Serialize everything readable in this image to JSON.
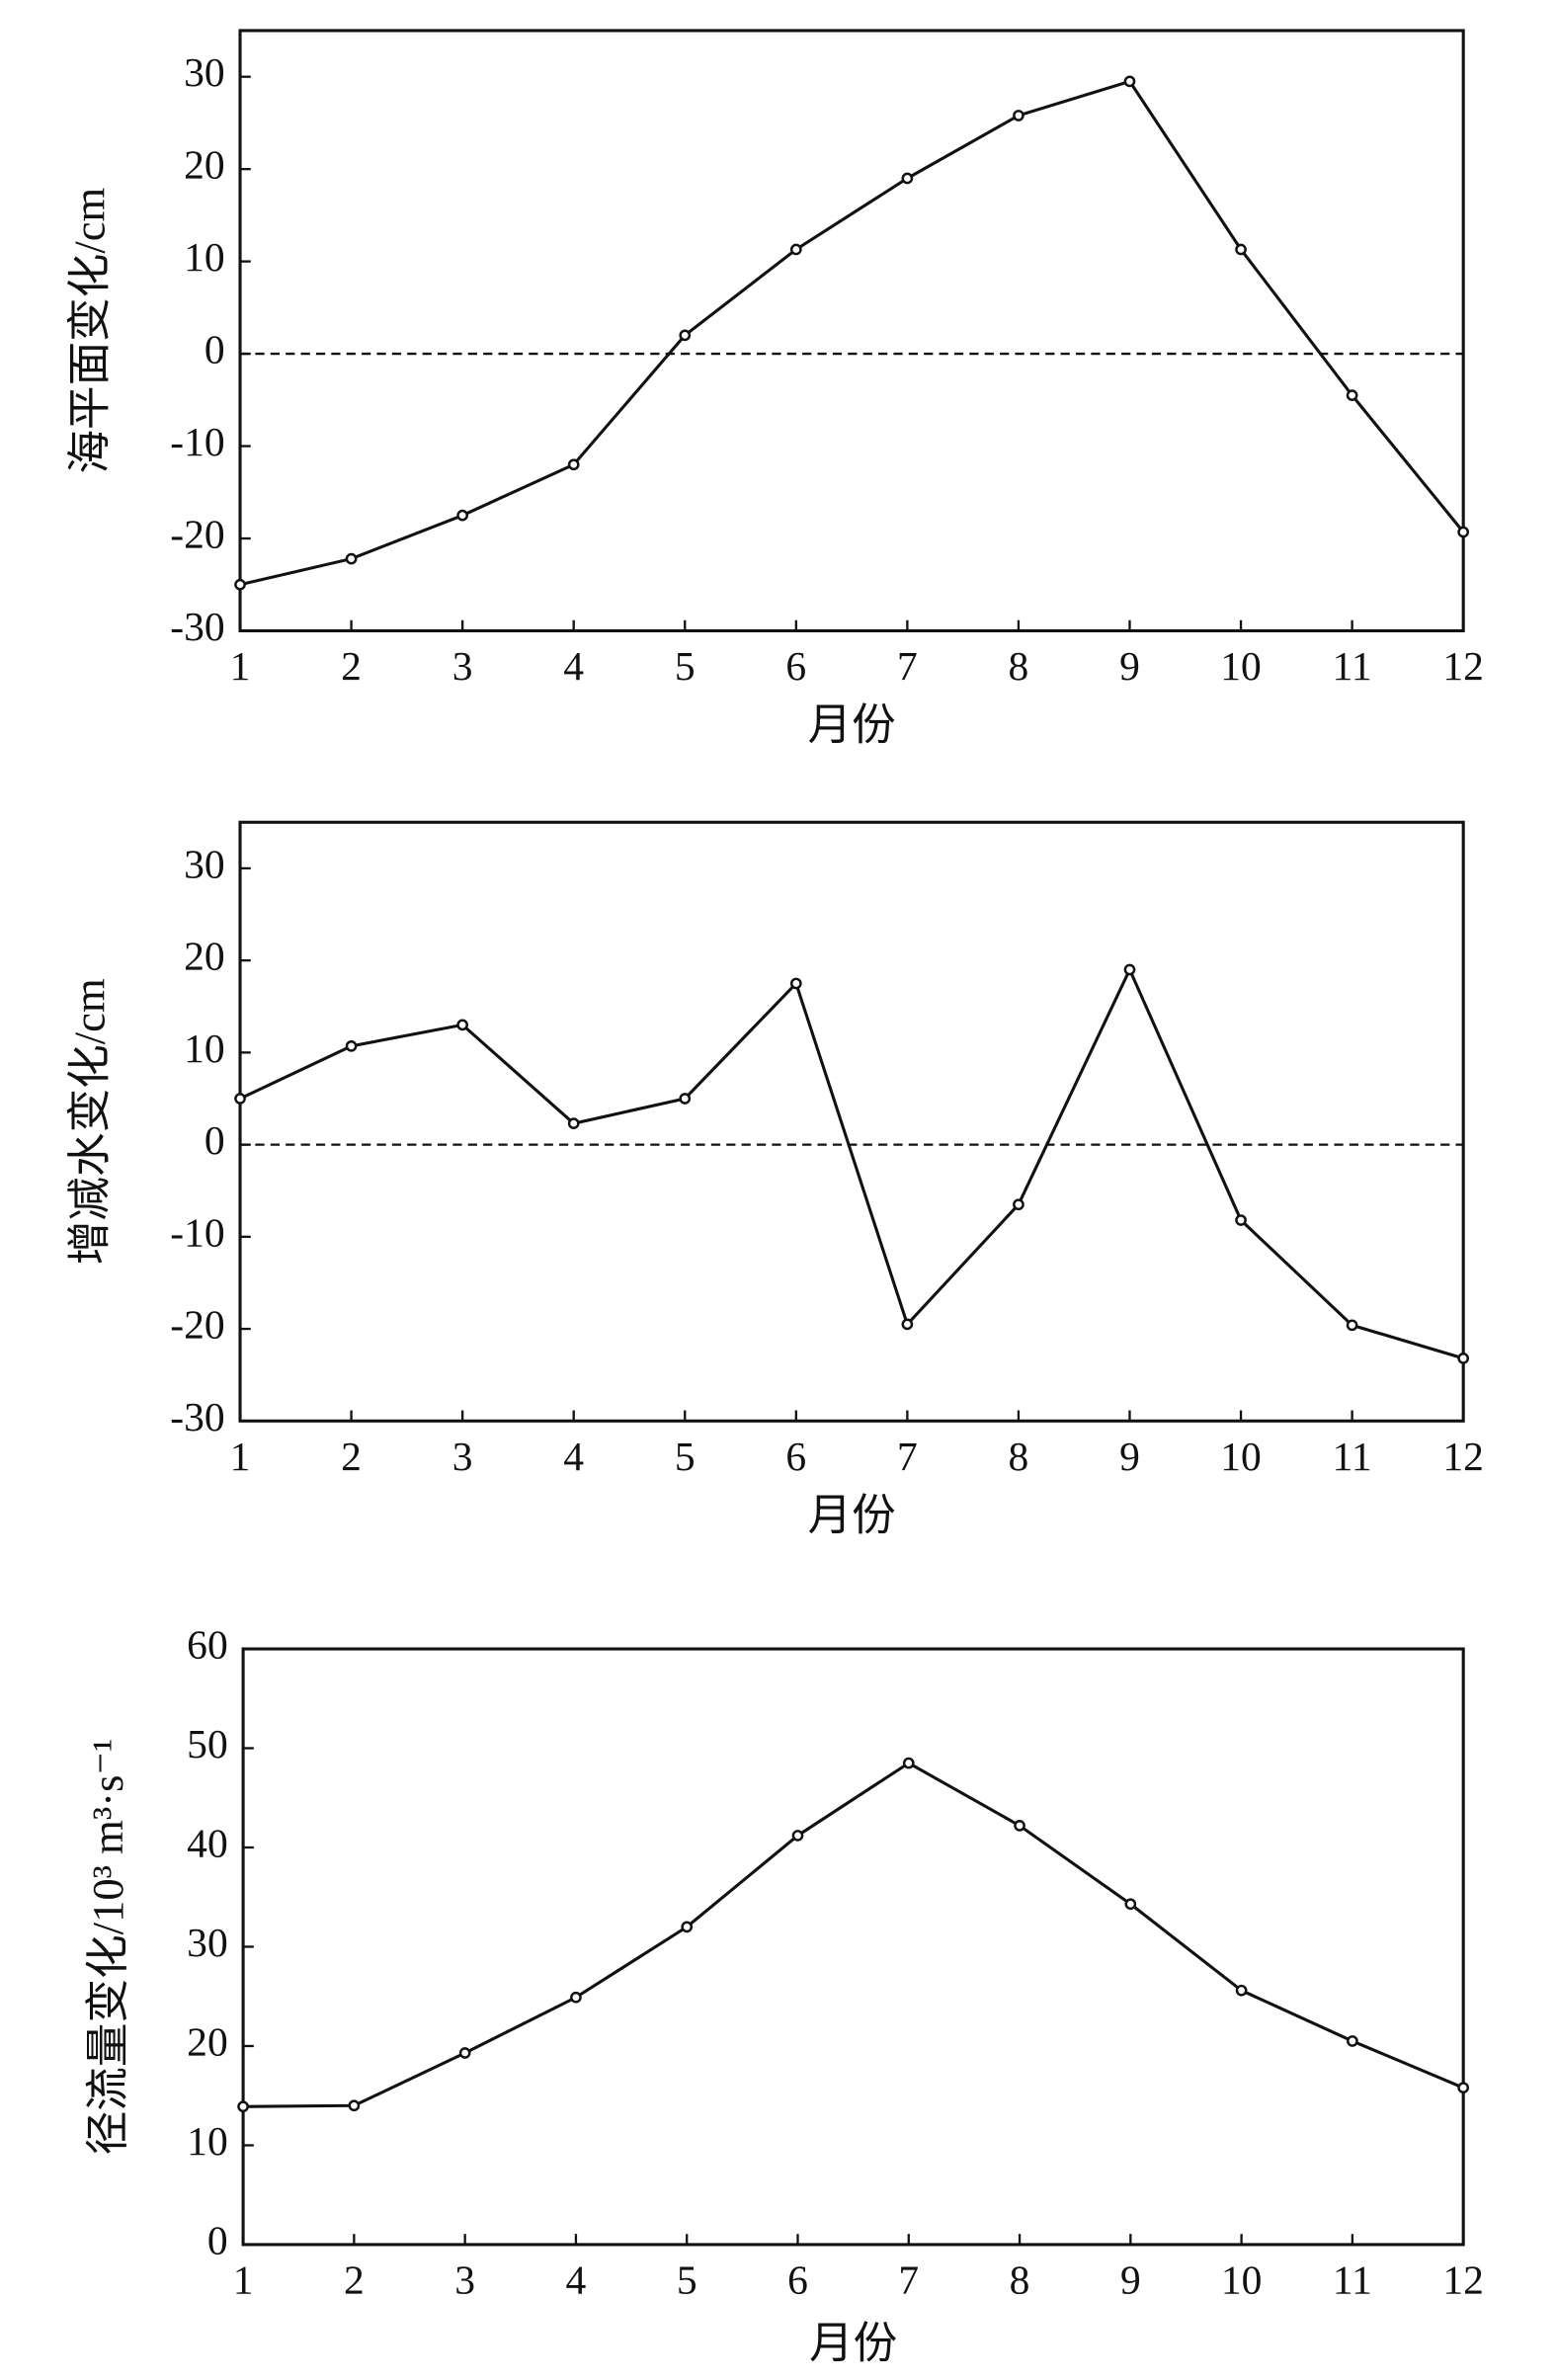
{
  "chart_data": [
    {
      "type": "line",
      "ylabel": "海平面变化/cm",
      "xlabel": "月份",
      "x": [
        1,
        2,
        3,
        4,
        5,
        6,
        7,
        8,
        9,
        10,
        11,
        12
      ],
      "values": [
        -25,
        -22.2,
        -17.5,
        -12,
        2,
        11.3,
        19,
        25.8,
        29.5,
        11.3,
        -4.5,
        -19.3
      ],
      "color": "#111111",
      "xlim": [
        1,
        12
      ],
      "xticks": [
        1,
        2,
        3,
        4,
        5,
        6,
        7,
        8,
        9,
        10,
        11,
        12
      ],
      "ylim": [
        -30,
        35
      ],
      "yticks": [
        -30,
        -20,
        -10,
        0,
        10,
        20,
        30
      ],
      "hline": 0
    },
    {
      "type": "line",
      "ylabel": "增减水变化/cm",
      "xlabel": "月份",
      "x": [
        1,
        2,
        3,
        4,
        5,
        6,
        7,
        8,
        9,
        10,
        11,
        12
      ],
      "values": [
        5,
        10.7,
        13,
        2.3,
        5,
        17.5,
        -19.5,
        -6.5,
        19,
        -8.2,
        -19.6,
        -23.2
      ],
      "color": "#111111",
      "xlim": [
        1,
        12
      ],
      "xticks": [
        1,
        2,
        3,
        4,
        5,
        6,
        7,
        8,
        9,
        10,
        11,
        12
      ],
      "ylim": [
        -30,
        35
      ],
      "yticks": [
        -30,
        -20,
        -10,
        0,
        10,
        20,
        30
      ],
      "hline": 0
    },
    {
      "type": "line",
      "ylabel": "径流量变化/10³ m³·s⁻¹",
      "xlabel": "月份",
      "x": [
        1,
        2,
        3,
        4,
        5,
        6,
        7,
        8,
        9,
        10,
        11,
        12
      ],
      "values": [
        13.9,
        14,
        19.3,
        24.9,
        32,
        41.2,
        48.5,
        42.2,
        34.3,
        25.6,
        20.5,
        15.8
      ],
      "color": "#111111",
      "xlim": [
        1,
        12
      ],
      "xticks": [
        1,
        2,
        3,
        4,
        5,
        6,
        7,
        8,
        9,
        10,
        11,
        12
      ],
      "ylim": [
        0,
        60
      ],
      "yticks": [
        0,
        10,
        20,
        30,
        40,
        50,
        60
      ]
    }
  ]
}
